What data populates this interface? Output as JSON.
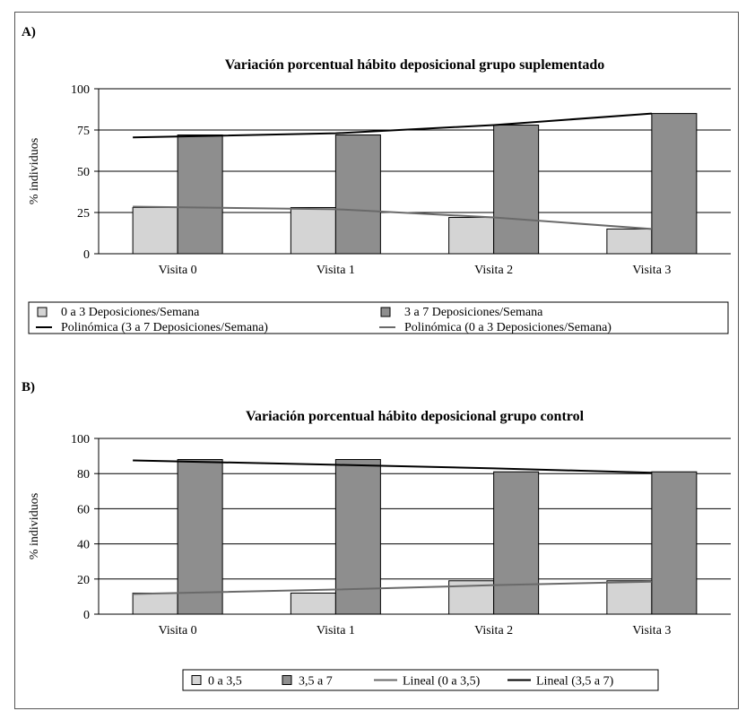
{
  "panels": [
    {
      "label": "A)"
    },
    {
      "label": "B)"
    }
  ],
  "chart_data": [
    {
      "type": "bar",
      "title": "Variación porcentual hábito deposicional grupo suplementado",
      "xlabel": "",
      "ylabel": "% individuos",
      "ylim": [
        0,
        100
      ],
      "yticks": [
        "0",
        "25",
        "50",
        "75",
        "100"
      ],
      "ytick_values": [
        0,
        25,
        50,
        75,
        100
      ],
      "categories": [
        "Visita 0",
        "Visita 1",
        "Visita 2",
        "Visita 3"
      ],
      "grid": true,
      "legend_position": "bottom",
      "series": [
        {
          "name": "0 a 3 Deposiciones/Semana",
          "values": [
            28,
            28,
            22,
            15
          ],
          "color": "#d4d4d4"
        },
        {
          "name": "3 a 7 Deposiciones/Semana",
          "values": [
            72,
            72,
            78,
            85
          ],
          "color": "#8e8e8e"
        }
      ],
      "trendlines": [
        {
          "name": "Polinómica (3 a 7 Deposiciones/Semana)",
          "values": [
            70.5,
            73,
            78,
            85
          ],
          "color": "#000000"
        },
        {
          "name": "Polinómica (0 a 3 Deposiciones/Semana)",
          "values": [
            28.5,
            27,
            22,
            15
          ],
          "color": "#6a6a6a"
        }
      ]
    },
    {
      "type": "bar",
      "title": "Variación porcentual hábito deposicional grupo control",
      "xlabel": "",
      "ylabel": "% individuos",
      "ylim": [
        0,
        100
      ],
      "yticks": [
        "0",
        "20",
        "40",
        "60",
        "80",
        "100"
      ],
      "ytick_values": [
        0,
        20,
        40,
        60,
        80,
        100
      ],
      "categories": [
        "Visita 0",
        "Visita 1",
        "Visita 2",
        "Visita 3"
      ],
      "grid": true,
      "legend_position": "bottom",
      "series": [
        {
          "name": "0 a 3,5",
          "values": [
            12,
            12,
            19,
            19
          ],
          "color": "#d4d4d4"
        },
        {
          "name": "3,5 a 7",
          "values": [
            88,
            88,
            81,
            81
          ],
          "color": "#8e8e8e"
        }
      ],
      "trendlines": [
        {
          "name": "Lineal (0 a 3,5)",
          "values": [
            11.5,
            14,
            16.5,
            18.5
          ],
          "color": "#6a6a6a"
        },
        {
          "name": "Lineal (3,5 a 7)",
          "values": [
            87.5,
            85,
            83,
            80.5
          ],
          "color": "#000000"
        }
      ]
    }
  ]
}
